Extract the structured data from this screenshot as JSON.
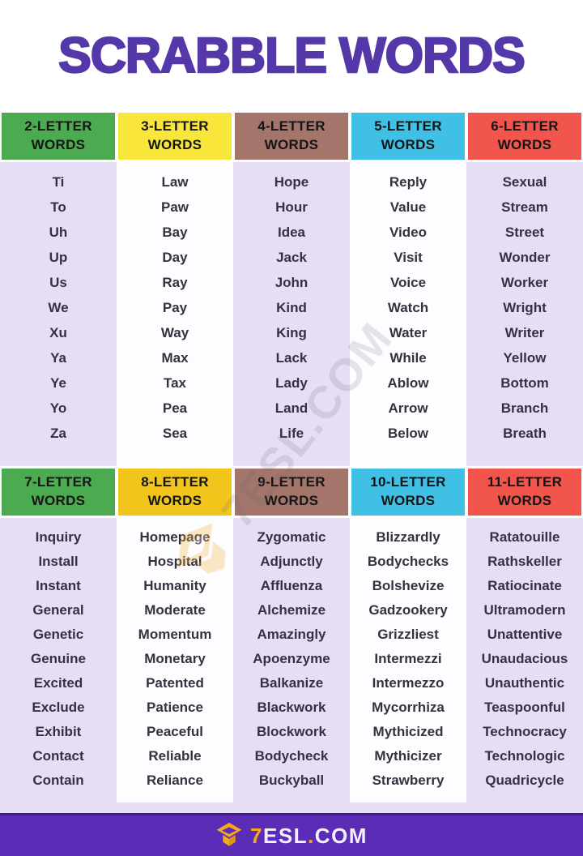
{
  "title": "SCRABBLE WORDS",
  "colors": {
    "title_purple": "#5438aa",
    "footer_purple": "#5b2db6",
    "lavender": "#e6def5",
    "brand_orange": "#f6a81c",
    "header_green": "#4cab51",
    "header_yellow_bright": "#f8e73a",
    "header_yellow_gold": "#f2c51d",
    "header_brown": "#a3756b",
    "header_cyan": "#3fc0e4",
    "header_red": "#f1554b"
  },
  "watermark": {
    "text": "7ESL.COM",
    "cap_icon": "graduation-cap"
  },
  "sections": [
    {
      "columns": [
        {
          "id": "2-letter",
          "label": "2-LETTER",
          "sublabel": "WORDS",
          "header_bg": "#4cab51",
          "stripe": "lavender",
          "words": [
            "Ti",
            "To",
            "Uh",
            "Up",
            "Us",
            "We",
            "Xu",
            "Ya",
            "Ye",
            "Yo",
            "Za"
          ]
        },
        {
          "id": "3-letter",
          "label": "3-LETTER",
          "sublabel": "WORDS",
          "header_bg": "#f8e73a",
          "stripe": "white",
          "words": [
            "Law",
            "Paw",
            "Bay",
            "Day",
            "Ray",
            "Pay",
            "Way",
            "Max",
            "Tax",
            "Pea",
            "Sea"
          ]
        },
        {
          "id": "4-letter",
          "label": "4-LETTER",
          "sublabel": "WORDS",
          "header_bg": "#a3756b",
          "stripe": "lavender",
          "words": [
            "Hope",
            "Hour",
            "Idea",
            "Jack",
            "John",
            "Kind",
            "King",
            "Lack",
            "Lady",
            "Land",
            "Life"
          ]
        },
        {
          "id": "5-letter",
          "label": "5-LETTER",
          "sublabel": "WORDS",
          "header_bg": "#3fc0e4",
          "stripe": "white",
          "words": [
            "Reply",
            "Value",
            "Video",
            "Visit",
            "Voice",
            "Watch",
            "Water",
            "While",
            "Ablow",
            "Arrow",
            "Below"
          ]
        },
        {
          "id": "6-letter",
          "label": "6-LETTER",
          "sublabel": "WORDS",
          "header_bg": "#f1554b",
          "stripe": "lavender",
          "words": [
            "Sexual",
            "Stream",
            "Street",
            "Wonder",
            "Worker",
            "Wright",
            "Writer",
            "Yellow",
            "Bottom",
            "Branch",
            "Breath"
          ]
        }
      ]
    },
    {
      "columns": [
        {
          "id": "7-letter",
          "label": "7-LETTER",
          "sublabel": "WORDS",
          "header_bg": "#4cab51",
          "stripe": "lavender",
          "words": [
            "Inquiry",
            "Install",
            "Instant",
            "General",
            "Genetic",
            "Genuine",
            "Excited",
            "Exclude",
            "Exhibit",
            "Contact",
            "Contain"
          ]
        },
        {
          "id": "8-letter",
          "label": "8-LETTER",
          "sublabel": "WORDS",
          "header_bg": "#f2c51d",
          "stripe": "white",
          "words": [
            "Homepage",
            "Hospital",
            "Humanity",
            "Moderate",
            "Momentum",
            "Monetary",
            "Patented",
            "Patience",
            "Peaceful",
            "Reliable",
            "Reliance"
          ]
        },
        {
          "id": "9-letter",
          "label": "9-LETTER",
          "sublabel": "WORDS",
          "header_bg": "#a3756b",
          "stripe": "lavender",
          "words": [
            "Zygomatic",
            "Adjunctly",
            "Affluenza",
            "Alchemize",
            "Amazingly",
            "Apoenzyme",
            "Balkanize",
            "Blackwork",
            "Blockwork",
            "Bodycheck",
            "Buckyball"
          ]
        },
        {
          "id": "10-letter",
          "label": "10-LETTER",
          "sublabel": "WORDS",
          "header_bg": "#3fc0e4",
          "stripe": "white",
          "words": [
            "Blizzardly",
            "Bodychecks",
            "Bolshevize",
            "Gadzookery",
            "Grizzliest",
            "Intermezzi",
            "Intermezzo",
            "Mycorrhiza",
            "Mythicized",
            "Mythicizer",
            "Strawberry"
          ]
        },
        {
          "id": "11-letter",
          "label": "11-LETTER",
          "sublabel": "WORDS",
          "header_bg": "#f1554b",
          "stripe": "lavender",
          "words": [
            "Ratatouille",
            "Rathskeller",
            "Ratiocinate",
            "Ultramodern",
            "Unattentive",
            "Unaudacious",
            "Unauthentic",
            "Teaspoonful",
            "Technocracy",
            "Technologic",
            "Quadricycle"
          ]
        }
      ]
    }
  ],
  "footer": {
    "brand_number": "7",
    "brand_esl": "ESL",
    "brand_dot": ".",
    "brand_com": "COM",
    "logo_icon": "graduation-cap"
  }
}
